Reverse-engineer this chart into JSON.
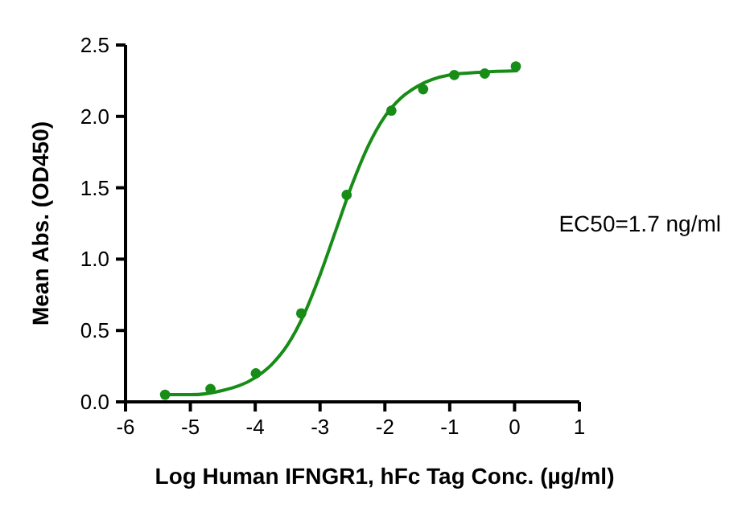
{
  "chart_data": {
    "type": "scatter",
    "xlabel": "Log Human IFNGR1, hFc Tag Conc. (µg/ml)",
    "ylabel": "Mean Abs. (OD450)",
    "xlim": [
      -6,
      1
    ],
    "xticks": [
      -6,
      -5,
      -4,
      -3,
      -2,
      -1,
      0,
      1
    ],
    "ylim": [
      0,
      2.5
    ],
    "yticks": [
      {
        "value": 0,
        "label": "0.0"
      },
      {
        "value": 0.5,
        "label": "0.5"
      },
      {
        "value": 1,
        "label": "1.0"
      },
      {
        "value": 1.5,
        "label": "1.5"
      },
      {
        "value": 2,
        "label": "2.0"
      },
      {
        "value": 2.5,
        "label": "2.5"
      }
    ],
    "grid": false,
    "marker": "circle",
    "annotations": [
      "EC50=1.7 ng/ml"
    ],
    "series": [
      {
        "color": "#178c17",
        "x": [
          -5.39,
          -4.69,
          -3.99,
          -3.29,
          -2.59,
          -1.9,
          -1.41,
          -0.93,
          -0.46,
          0.02
        ],
        "values": [
          0.05,
          0.09,
          0.2,
          0.62,
          1.45,
          2.04,
          2.19,
          2.29,
          2.3,
          2.35
        ]
      },
      {
        "type": "line",
        "color": "#178c17",
        "marker": "none",
        "line_style": "solid",
        "x": [
          -5.4,
          -5,
          -4.5,
          -4,
          -3.75,
          -3.5,
          -3.25,
          -3,
          -2.75,
          -2.5,
          -2.25,
          -2,
          -1.75,
          -1.5,
          -1,
          -0.5,
          0.05
        ],
        "values": [
          0.05,
          0.05,
          0.08,
          0.17,
          0.26,
          0.4,
          0.61,
          0.89,
          1.21,
          1.53,
          1.8,
          2,
          2.13,
          2.21,
          2.29,
          2.31,
          2.32
        ]
      }
    ]
  }
}
